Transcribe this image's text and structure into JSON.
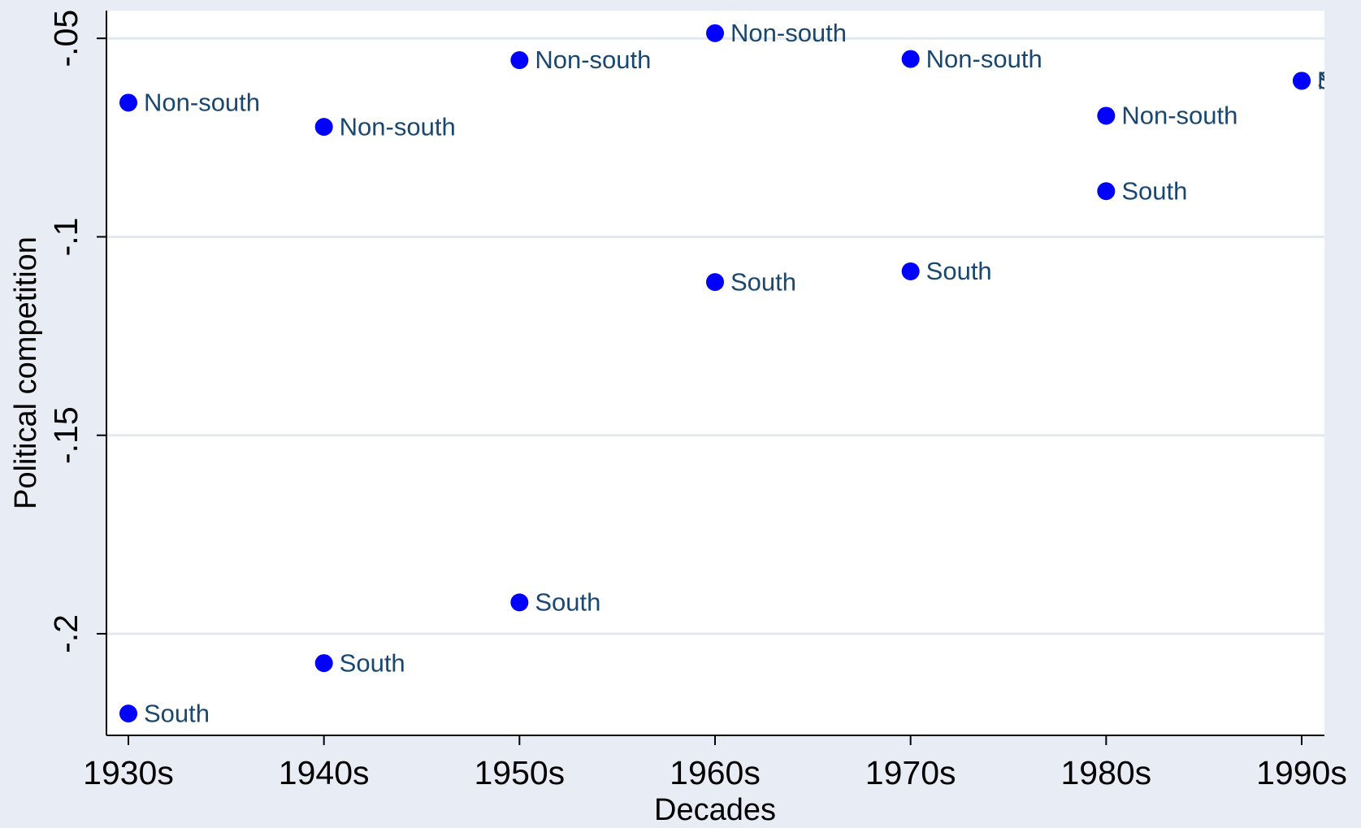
{
  "chart_data": {
    "type": "scatter",
    "x_label": "Decades",
    "y_label": "Political competition",
    "categories": [
      "1930s",
      "1940s",
      "1950s",
      "1960s",
      "1970s",
      "1980s",
      "1990s"
    ],
    "series": [
      {
        "name": "Non-south",
        "color": "#0000ff",
        "values": [
          -0.0662,
          -0.0723,
          -0.0555,
          -0.0487,
          -0.0552,
          -0.0695,
          -0.0607
        ]
      },
      {
        "name": "South",
        "color": "#0000ff",
        "values": [
          -0.2201,
          -0.2074,
          -0.1921,
          -0.1114,
          -0.1087,
          -0.0885,
          -0.0607
        ]
      }
    ],
    "ylim": [
      -0.2256,
      -0.043
    ],
    "yticks": [
      {
        "value": -0.05,
        "label": "-.05"
      },
      {
        "value": -0.1,
        "label": "-.1"
      },
      {
        "value": -0.15,
        "label": "-.15"
      },
      {
        "value": -0.2,
        "label": "-.2"
      }
    ],
    "grid": true
  }
}
